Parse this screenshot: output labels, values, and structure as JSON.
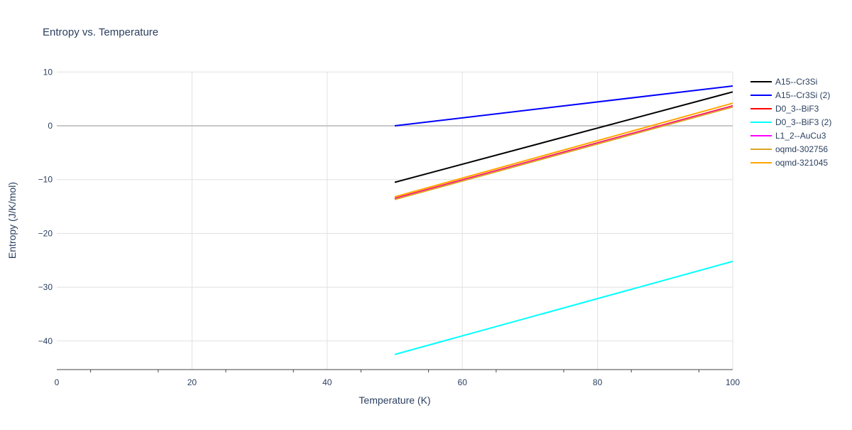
{
  "chart_data": {
    "type": "line",
    "title": "Entropy vs. Temperature",
    "xlabel": "Temperature (K)",
    "ylabel": "Entropy (J/K/mol)",
    "xlim": [
      0,
      100
    ],
    "ylim": [
      -45.3,
      10
    ],
    "xticks": [
      0,
      20,
      40,
      60,
      80,
      100
    ],
    "yticks": [
      10,
      0,
      -10,
      -20,
      -30,
      -40
    ],
    "ytick_labels": [
      "10",
      "0",
      "−10",
      "−20",
      "−30",
      "−40"
    ],
    "grid": true,
    "legend_position": "right",
    "series": [
      {
        "name": "A15--Cr3Si",
        "color": "#000000",
        "x": [
          50,
          100
        ],
        "y": [
          -10.5,
          6.3
        ]
      },
      {
        "name": "A15--Cr3Si (2)",
        "color": "#0000ff",
        "x": [
          50,
          100
        ],
        "y": [
          0.0,
          7.4
        ]
      },
      {
        "name": "D0_3--BiF3",
        "color": "#ff0000",
        "x": [
          50,
          100
        ],
        "y": [
          -13.5,
          3.7
        ]
      },
      {
        "name": "D0_3--BiF3 (2)",
        "color": "#00ffff",
        "x": [
          50,
          100
        ],
        "y": [
          -42.5,
          -25.2
        ]
      },
      {
        "name": "L1_2--AuCu3",
        "color": "#ff00ff",
        "x": [
          50,
          100
        ],
        "y": [
          -13.6,
          3.6
        ]
      },
      {
        "name": "oqmd-302756",
        "color": "#daa520",
        "x": [
          50,
          100
        ],
        "y": [
          -13.7,
          3.5
        ]
      },
      {
        "name": "oqmd-321045",
        "color": "#ffa500",
        "x": [
          50,
          100
        ],
        "y": [
          -13.2,
          4.2
        ]
      }
    ]
  }
}
